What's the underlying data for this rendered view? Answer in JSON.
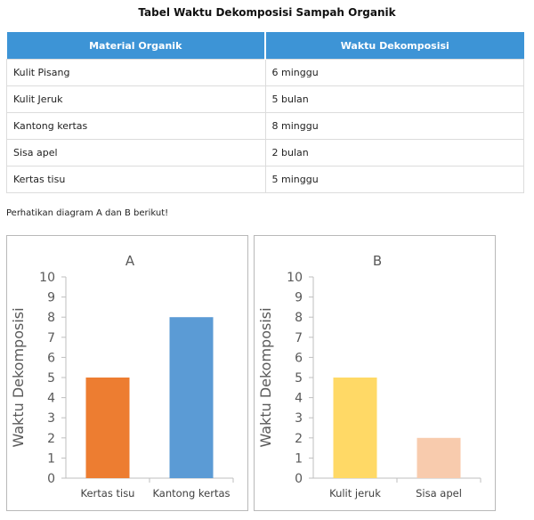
{
  "heading": "Tabel Waktu Dekomposisi Sampah Organik",
  "table": {
    "headers": [
      "Material Organik",
      "Waktu Dekomposisi"
    ],
    "rows": [
      [
        "Kulit Pisang",
        "6 minggu"
      ],
      [
        "Kulit Jeruk",
        "5 bulan"
      ],
      [
        "Kantong kertas",
        "8 minggu"
      ],
      [
        "Sisa apel",
        "2 bulan"
      ],
      [
        "Kertas tisu",
        "5 minggu"
      ]
    ],
    "header_color": "#3d94d6"
  },
  "instruction": "Perhatikan diagram A dan B berikut!",
  "chart_data": [
    {
      "type": "bar",
      "title": "A",
      "ylabel": "Waktu Dekomposisi",
      "xlabel": "",
      "categories": [
        "Kertas tisu",
        "Kantong kertas"
      ],
      "values": [
        5,
        8
      ],
      "colors": [
        "#ed7d31",
        "#5b9bd5"
      ],
      "ylim": [
        0,
        10
      ],
      "yticks": [
        0,
        1,
        2,
        3,
        4,
        5,
        6,
        7,
        8,
        9,
        10
      ],
      "grid": false
    },
    {
      "type": "bar",
      "title": "B",
      "ylabel": "Waktu Dekomposisi",
      "xlabel": "",
      "categories": [
        "Kulit jeruk",
        "Sisa apel"
      ],
      "values": [
        5,
        2
      ],
      "colors": [
        "#ffd966",
        "#f8cbad"
      ],
      "ylim": [
        0,
        10
      ],
      "yticks": [
        0,
        1,
        2,
        3,
        4,
        5,
        6,
        7,
        8,
        9,
        10
      ],
      "grid": false
    }
  ]
}
